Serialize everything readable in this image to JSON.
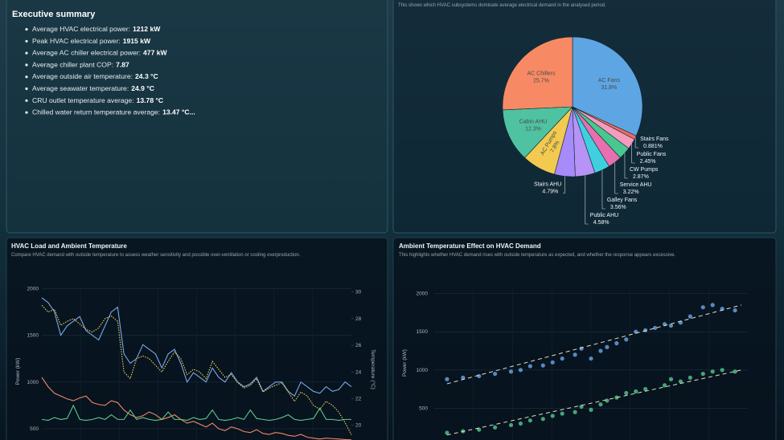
{
  "summary": {
    "heading": "Executive summary",
    "items": [
      {
        "label": "Average HVAC electrical power:",
        "value": "1212 kW"
      },
      {
        "label": "Peak HVAC electrical power:",
        "value": "1915 kW"
      },
      {
        "label": "Average AC chiller electrical power:",
        "value": "477 kW"
      },
      {
        "label": "Average chiller plant COP:",
        "value": "7.87"
      },
      {
        "label": "Average outside air temperature:",
        "value": "24.3 °C"
      },
      {
        "label": "Average seawater temperature:",
        "value": "24.9 °C"
      },
      {
        "label": "CRU outlet temperature average:",
        "value": "13.78 °C"
      },
      {
        "label": "Chilled water return temperature average:",
        "value": "13.47 °C..."
      }
    ]
  },
  "chart_data": [
    {
      "type": "pie",
      "subtitle": "This shows which HVAC subsystems dominate average electrical demand in the analysed period.",
      "categories": [
        "AC Fans",
        "Stairs Fans",
        "Public Fans",
        "CW Pumps",
        "Service AHU",
        "Galley Fans",
        "Public AHU",
        "Stairs AHU",
        "AC Pumps",
        "Cabin AHU",
        "AC Chillers"
      ],
      "values": [
        31.8,
        0.881,
        2.45,
        2.87,
        3.22,
        3.56,
        4.58,
        4.79,
        7.8,
        12.3,
        25.7
      ],
      "value_labels": [
        "31.8%",
        "0.881%",
        "2.45%",
        "2.87%",
        "3.22%",
        "3.56%",
        "4.58%",
        "4.79%",
        "7.8%",
        "12.3%",
        "25.7%"
      ],
      "colors": [
        "#5ea5e3",
        "#f26b5b",
        "#f59bbf",
        "#48c78e",
        "#e86fb0",
        "#3fd0e0",
        "#b693f5",
        "#a78bfa",
        "#f1ca4f",
        "#4fc3a1",
        "#f78a64"
      ]
    },
    {
      "type": "line",
      "title": "HVAC Load and Ambient Temperature",
      "subtitle": "Compare HVAC demand with outside temperature to assess weather sensitivity and possible over-ventilation or cooling overproduction.",
      "y_label": "Power (kW)",
      "y2_label": "Temperature (°C)",
      "ylim": [
        380,
        2020
      ],
      "yticks": [
        500,
        1000,
        1500,
        2000
      ],
      "y2lim": [
        18.9,
        30.4
      ],
      "y2ticks": [
        20,
        22,
        24,
        26,
        28,
        30
      ],
      "grid": true,
      "series": [
        {
          "color": "#7ba7e6",
          "values": [
            1900,
            1850,
            1750,
            1500,
            1600,
            1650,
            1700,
            1550,
            1500,
            1450,
            1600,
            1750,
            1800,
            1300,
            1200,
            1250,
            1400,
            1350,
            1300,
            1150,
            1300,
            1350,
            1200,
            1000,
            1100,
            1050,
            1000,
            1150,
            1050,
            1000,
            1100,
            1000,
            950,
            980,
            1050,
            900,
            950,
            1000,
            1000,
            900,
            850,
            1000,
            950,
            900,
            880,
            950,
            900,
            920,
            1000,
            950
          ]
        },
        {
          "color": "#f0876a",
          "values": [
            1050,
            950,
            880,
            850,
            820,
            800,
            830,
            850,
            780,
            760,
            750,
            800,
            780,
            700,
            650,
            620,
            640,
            680,
            650,
            600,
            620,
            650,
            600,
            560,
            580,
            550,
            520,
            560,
            500,
            480,
            520,
            500,
            470,
            460,
            490,
            450,
            440,
            460,
            450,
            430,
            420,
            440,
            410,
            400,
            390,
            400,
            395,
            390,
            385,
            382
          ]
        },
        {
          "color": "#5cc88f",
          "values": [
            600,
            590,
            620,
            600,
            610,
            750,
            600,
            590,
            600,
            620,
            600,
            650,
            600,
            600,
            700,
            600,
            620,
            600,
            590,
            600,
            680,
            600,
            600,
            590,
            620,
            600,
            610,
            700,
            600,
            590,
            600,
            620,
            600,
            700,
            610,
            600,
            590,
            600,
            620,
            650,
            600,
            590,
            600,
            610,
            720,
            600,
            600,
            590,
            600,
            600
          ]
        },
        {
          "color": "#f4d35e",
          "axis": "y2",
          "dash": "dot",
          "values": [
            29,
            28.5,
            28.7,
            27.5,
            27.8,
            28,
            27.6,
            27.2,
            27,
            27.3,
            28,
            28.2,
            27.8,
            24,
            23.5,
            25,
            25.2,
            25,
            24.5,
            24,
            24.8,
            25.5,
            25,
            23.8,
            24.2,
            24,
            23.5,
            24.8,
            24.2,
            23.6,
            23.8,
            23.2,
            22.8,
            23,
            23.5,
            22.5,
            22.8,
            23,
            23.2,
            22.5,
            21.8,
            22.5,
            22.2,
            21.5,
            21.2,
            21.8,
            21.5,
            21,
            20.2,
            19.3
          ]
        }
      ]
    },
    {
      "type": "scatter",
      "title": "Ambient Temperature Effect on HVAC Demand",
      "subtitle": "This highlights whether HVAC demand rises with outside temperature as expected, and whether the response appears excessive.",
      "y_label": "Power (kW)",
      "ylim": [
        85,
        2090
      ],
      "yticks": [
        500,
        1000,
        1500,
        2000
      ],
      "xlim": [
        19.6,
        29.4
      ],
      "grid": true,
      "series": [
        {
          "color": "#6aa8ea",
          "x": [
            20.0,
            20.5,
            21.0,
            21.5,
            22.0,
            22.3,
            22.6,
            23.0,
            23.3,
            23.6,
            24.0,
            24.2,
            24.5,
            24.8,
            25.0,
            25.3,
            25.6,
            25.9,
            26.2,
            26.5,
            26.8,
            27.0,
            27.3,
            27.6,
            28.0,
            28.3,
            28.6,
            29.0
          ],
          "values": [
            880,
            900,
            920,
            950,
            980,
            1000,
            1050,
            1060,
            1100,
            1150,
            1200,
            1280,
            1150,
            1250,
            1300,
            1350,
            1400,
            1500,
            1520,
            1550,
            1600,
            1580,
            1620,
            1700,
            1820,
            1850,
            1800,
            1780
          ]
        },
        {
          "color": "#52c98f",
          "x": [
            20.0,
            20.5,
            21.0,
            21.5,
            22.0,
            22.3,
            22.6,
            23.0,
            23.3,
            23.6,
            24.0,
            24.2,
            24.5,
            24.8,
            25.0,
            25.3,
            25.6,
            25.9,
            26.2,
            26.8,
            27.0,
            27.3,
            27.6,
            28.0,
            28.3,
            28.6,
            29.0
          ],
          "values": [
            180,
            200,
            220,
            250,
            280,
            300,
            340,
            360,
            400,
            430,
            450,
            520,
            480,
            550,
            600,
            640,
            700,
            720,
            750,
            800,
            880,
            850,
            900,
            950,
            980,
            1000,
            980
          ]
        },
        {
          "color": "#e8dcc0",
          "mode": "line",
          "dash": "dash",
          "x": [
            20.0,
            29.2
          ],
          "values": [
            820,
            1850
          ]
        },
        {
          "color": "#e8dcc0",
          "mode": "line",
          "dash": "dash",
          "x": [
            20.0,
            29.2
          ],
          "values": [
            150,
            1000
          ]
        }
      ]
    }
  ]
}
